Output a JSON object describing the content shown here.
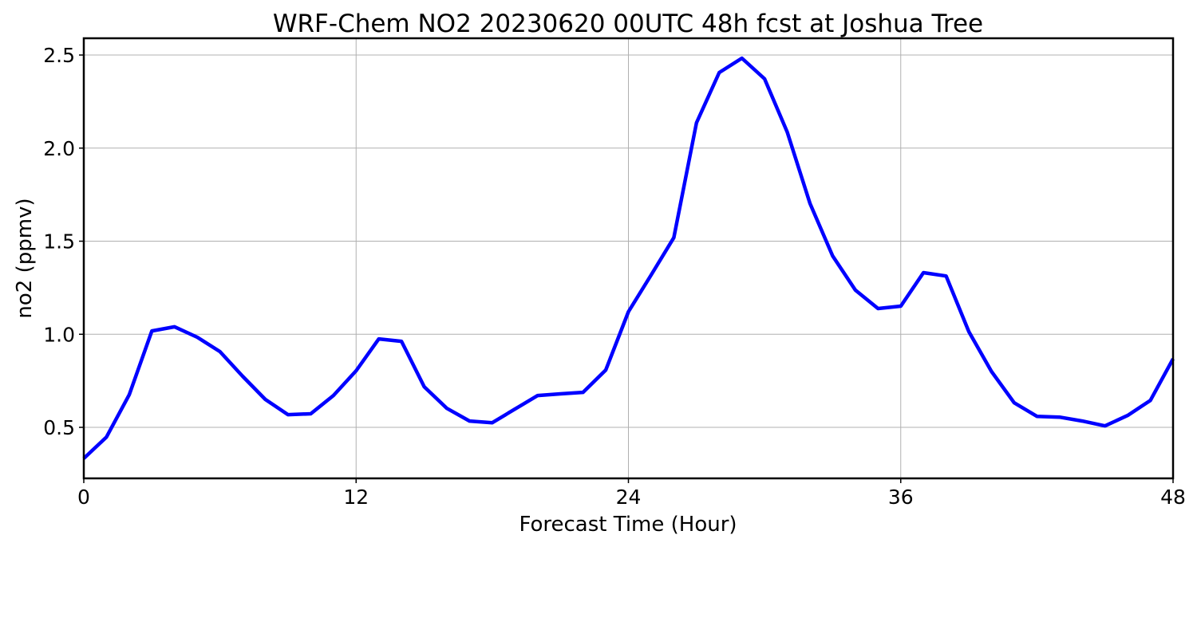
{
  "chart_data": {
    "type": "line",
    "title": "WRF-Chem NO2  20230620 00UTC 48h fcst at Joshua Tree",
    "xlabel": "Forecast Time (Hour)",
    "ylabel": "no2  (ppmv)",
    "xlim": [
      0,
      48
    ],
    "ylim": [
      0.226,
      2.59
    ],
    "xticks": [
      0,
      12,
      24,
      36,
      48
    ],
    "xtick_labels": [
      "0",
      "12",
      "24",
      "36",
      "48"
    ],
    "yticks": [
      0.5,
      1.0,
      1.5,
      2.0,
      2.5
    ],
    "ytick_labels": [
      "0.5",
      "1.0",
      "1.5",
      "2.0",
      "2.5"
    ],
    "grid": true,
    "series": [
      {
        "name": "no2",
        "color": "#0000ff",
        "x": [
          0,
          1,
          2,
          3,
          4,
          5,
          6,
          7,
          8,
          9,
          10,
          11,
          12,
          13,
          14,
          15,
          16,
          17,
          18,
          19,
          20,
          21,
          22,
          23,
          24,
          25,
          26,
          27,
          28,
          29,
          30,
          31,
          32,
          33,
          34,
          35,
          36,
          37,
          38,
          39,
          40,
          41,
          42,
          43,
          44,
          45,
          46,
          47,
          48
        ],
        "values": [
          0.333,
          0.448,
          0.675,
          1.018,
          1.04,
          0.984,
          0.907,
          0.774,
          0.65,
          0.568,
          0.573,
          0.671,
          0.804,
          0.975,
          0.962,
          0.718,
          0.602,
          0.534,
          0.525,
          0.598,
          0.671,
          0.68,
          0.688,
          0.808,
          1.121,
          1.318,
          1.519,
          2.136,
          2.406,
          2.483,
          2.372,
          2.085,
          1.703,
          1.421,
          1.237,
          1.138,
          1.151,
          1.331,
          1.313,
          1.014,
          0.8,
          0.632,
          0.559,
          0.555,
          0.534,
          0.508,
          0.564,
          0.645,
          0.868
        ]
      }
    ]
  }
}
